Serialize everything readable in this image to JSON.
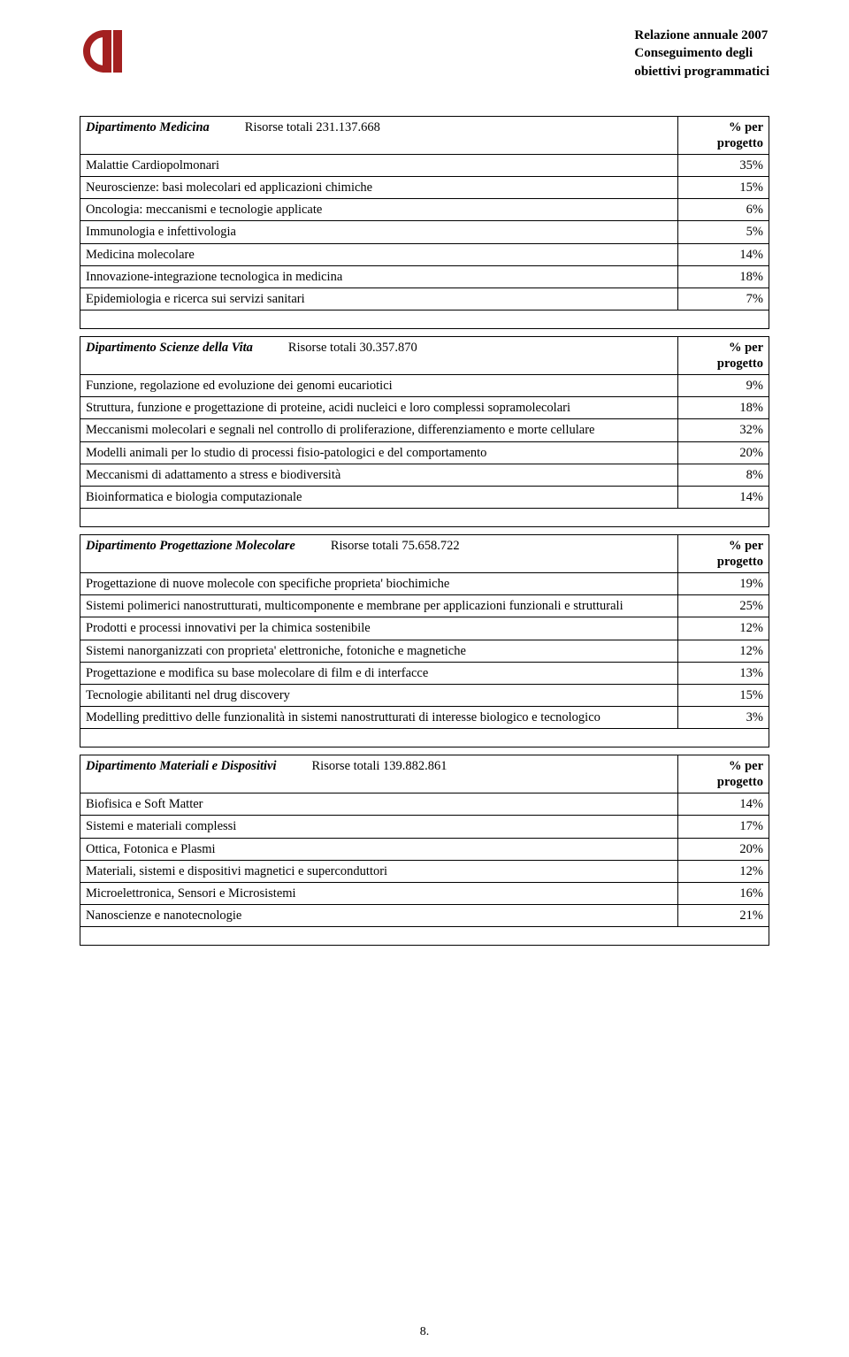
{
  "header": {
    "line1": "Relazione annuale 2007",
    "line2": "Conseguimento degli",
    "line3": "obiettivi programmatici"
  },
  "logo_color": "#a32020",
  "labels": {
    "risorse_totali": "Risorse totali",
    "pct_per": "% per",
    "progetto": "progetto"
  },
  "departments": [
    {
      "name": "Dipartimento Medicina",
      "resources": "231.137.668",
      "rows": [
        {
          "label": "Malattie Cardiopolmonari",
          "pct": "35%"
        },
        {
          "label": "Neuroscienze: basi molecolari ed applicazioni chimiche",
          "pct": "15%"
        },
        {
          "label": "Oncologia: meccanismi e tecnologie applicate",
          "pct": "6%"
        },
        {
          "label": "Immunologia e infettivologia",
          "pct": "5%"
        },
        {
          "label": "Medicina molecolare",
          "pct": "14%"
        },
        {
          "label": "Innovazione-integrazione tecnologica in medicina",
          "pct": "18%"
        },
        {
          "label": "Epidemiologia e ricerca sui servizi sanitari",
          "pct": "7%"
        }
      ]
    },
    {
      "name": "Dipartimento Scienze della Vita",
      "resources": "30.357.870",
      "rows": [
        {
          "label": "Funzione, regolazione ed evoluzione dei genomi eucariotici",
          "pct": "9%"
        },
        {
          "label": "Struttura, funzione e progettazione di proteine, acidi nucleici e loro complessi sopramolecolari",
          "pct": "18%"
        },
        {
          "label": "Meccanismi molecolari e segnali nel controllo di proliferazione, differenziamento e morte cellulare",
          "pct": "32%"
        },
        {
          "label": "Modelli animali per lo studio di processi fisio-patologici e del comportamento",
          "pct": "20%"
        },
        {
          "label": "Meccanismi di adattamento a stress e biodiversità",
          "pct": "8%"
        },
        {
          "label": "Bioinformatica e biologia computazionale",
          "pct": "14%"
        }
      ]
    },
    {
      "name": "Dipartimento Progettazione Molecolare",
      "resources": "75.658.722",
      "rows": [
        {
          "label": "Progettazione di nuove molecole con specifiche proprieta' biochimiche",
          "pct": "19%"
        },
        {
          "label": "Sistemi polimerici nanostrutturati, multicomponente e membrane per applicazioni funzionali e strutturali",
          "pct": "25%"
        },
        {
          "label": "Prodotti e processi innovativi per la chimica sostenibile",
          "pct": "12%"
        },
        {
          "label": "Sistemi nanorganizzati con proprieta' elettroniche, fotoniche e magnetiche",
          "pct": "12%"
        },
        {
          "label": "Progettazione e modifica su base molecolare di film e di interfacce",
          "pct": "13%"
        },
        {
          "label": "Tecnologie abilitanti nel drug discovery",
          "pct": "15%"
        },
        {
          "label": "Modelling predittivo delle funzionalità in sistemi nanostrutturati di interesse biologico e tecnologico",
          "pct": "3%"
        }
      ]
    },
    {
      "name": "Dipartimento Materiali e Dispositivi",
      "resources": "139.882.861",
      "rows": [
        {
          "label": "Biofisica e Soft Matter",
          "pct": "14%"
        },
        {
          "label": "Sistemi e materiali complessi",
          "pct": "17%"
        },
        {
          "label": "Ottica, Fotonica e Plasmi",
          "pct": "20%"
        },
        {
          "label": "Materiali, sistemi e dispositivi magnetici e superconduttori",
          "pct": "12%"
        },
        {
          "label": "Microelettronica, Sensori e Microsistemi",
          "pct": "16%"
        },
        {
          "label": "Nanoscienze e nanotecnologie",
          "pct": "21%"
        }
      ]
    }
  ],
  "page_number": "8."
}
